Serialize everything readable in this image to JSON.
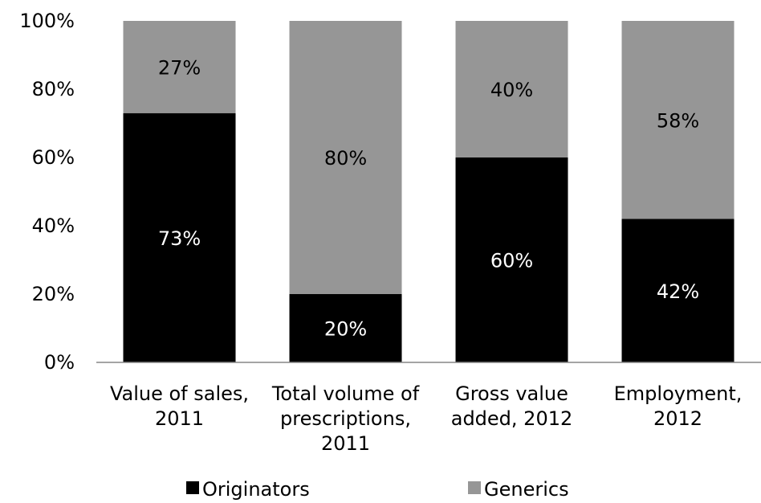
{
  "chart_data": {
    "type": "bar",
    "stacked": true,
    "percent": true,
    "title": "",
    "xlabel": "",
    "ylabel": "",
    "ylim": [
      0,
      100
    ],
    "yticks": [
      "0%",
      "20%",
      "40%",
      "60%",
      "80%",
      "100%"
    ],
    "grid": false,
    "legend_position": "bottom",
    "categories": [
      [
        "Value of sales,",
        "2011"
      ],
      [
        "Total volume of",
        "prescriptions,",
        "2011"
      ],
      [
        "Gross value",
        "added, 2012"
      ],
      [
        "Employment,",
        "2012"
      ]
    ],
    "series": [
      {
        "name": "Originators",
        "color": "#000000",
        "label_color": "#ffffff",
        "values": [
          73,
          20,
          60,
          42
        ],
        "labels": [
          "73%",
          "20%",
          "60%",
          "42%"
        ]
      },
      {
        "name": "Generics",
        "color": "#969696",
        "label_color": "#000000",
        "values": [
          27,
          80,
          40,
          58
        ],
        "labels": [
          "27%",
          "80%",
          "40%",
          "58%"
        ]
      }
    ]
  }
}
